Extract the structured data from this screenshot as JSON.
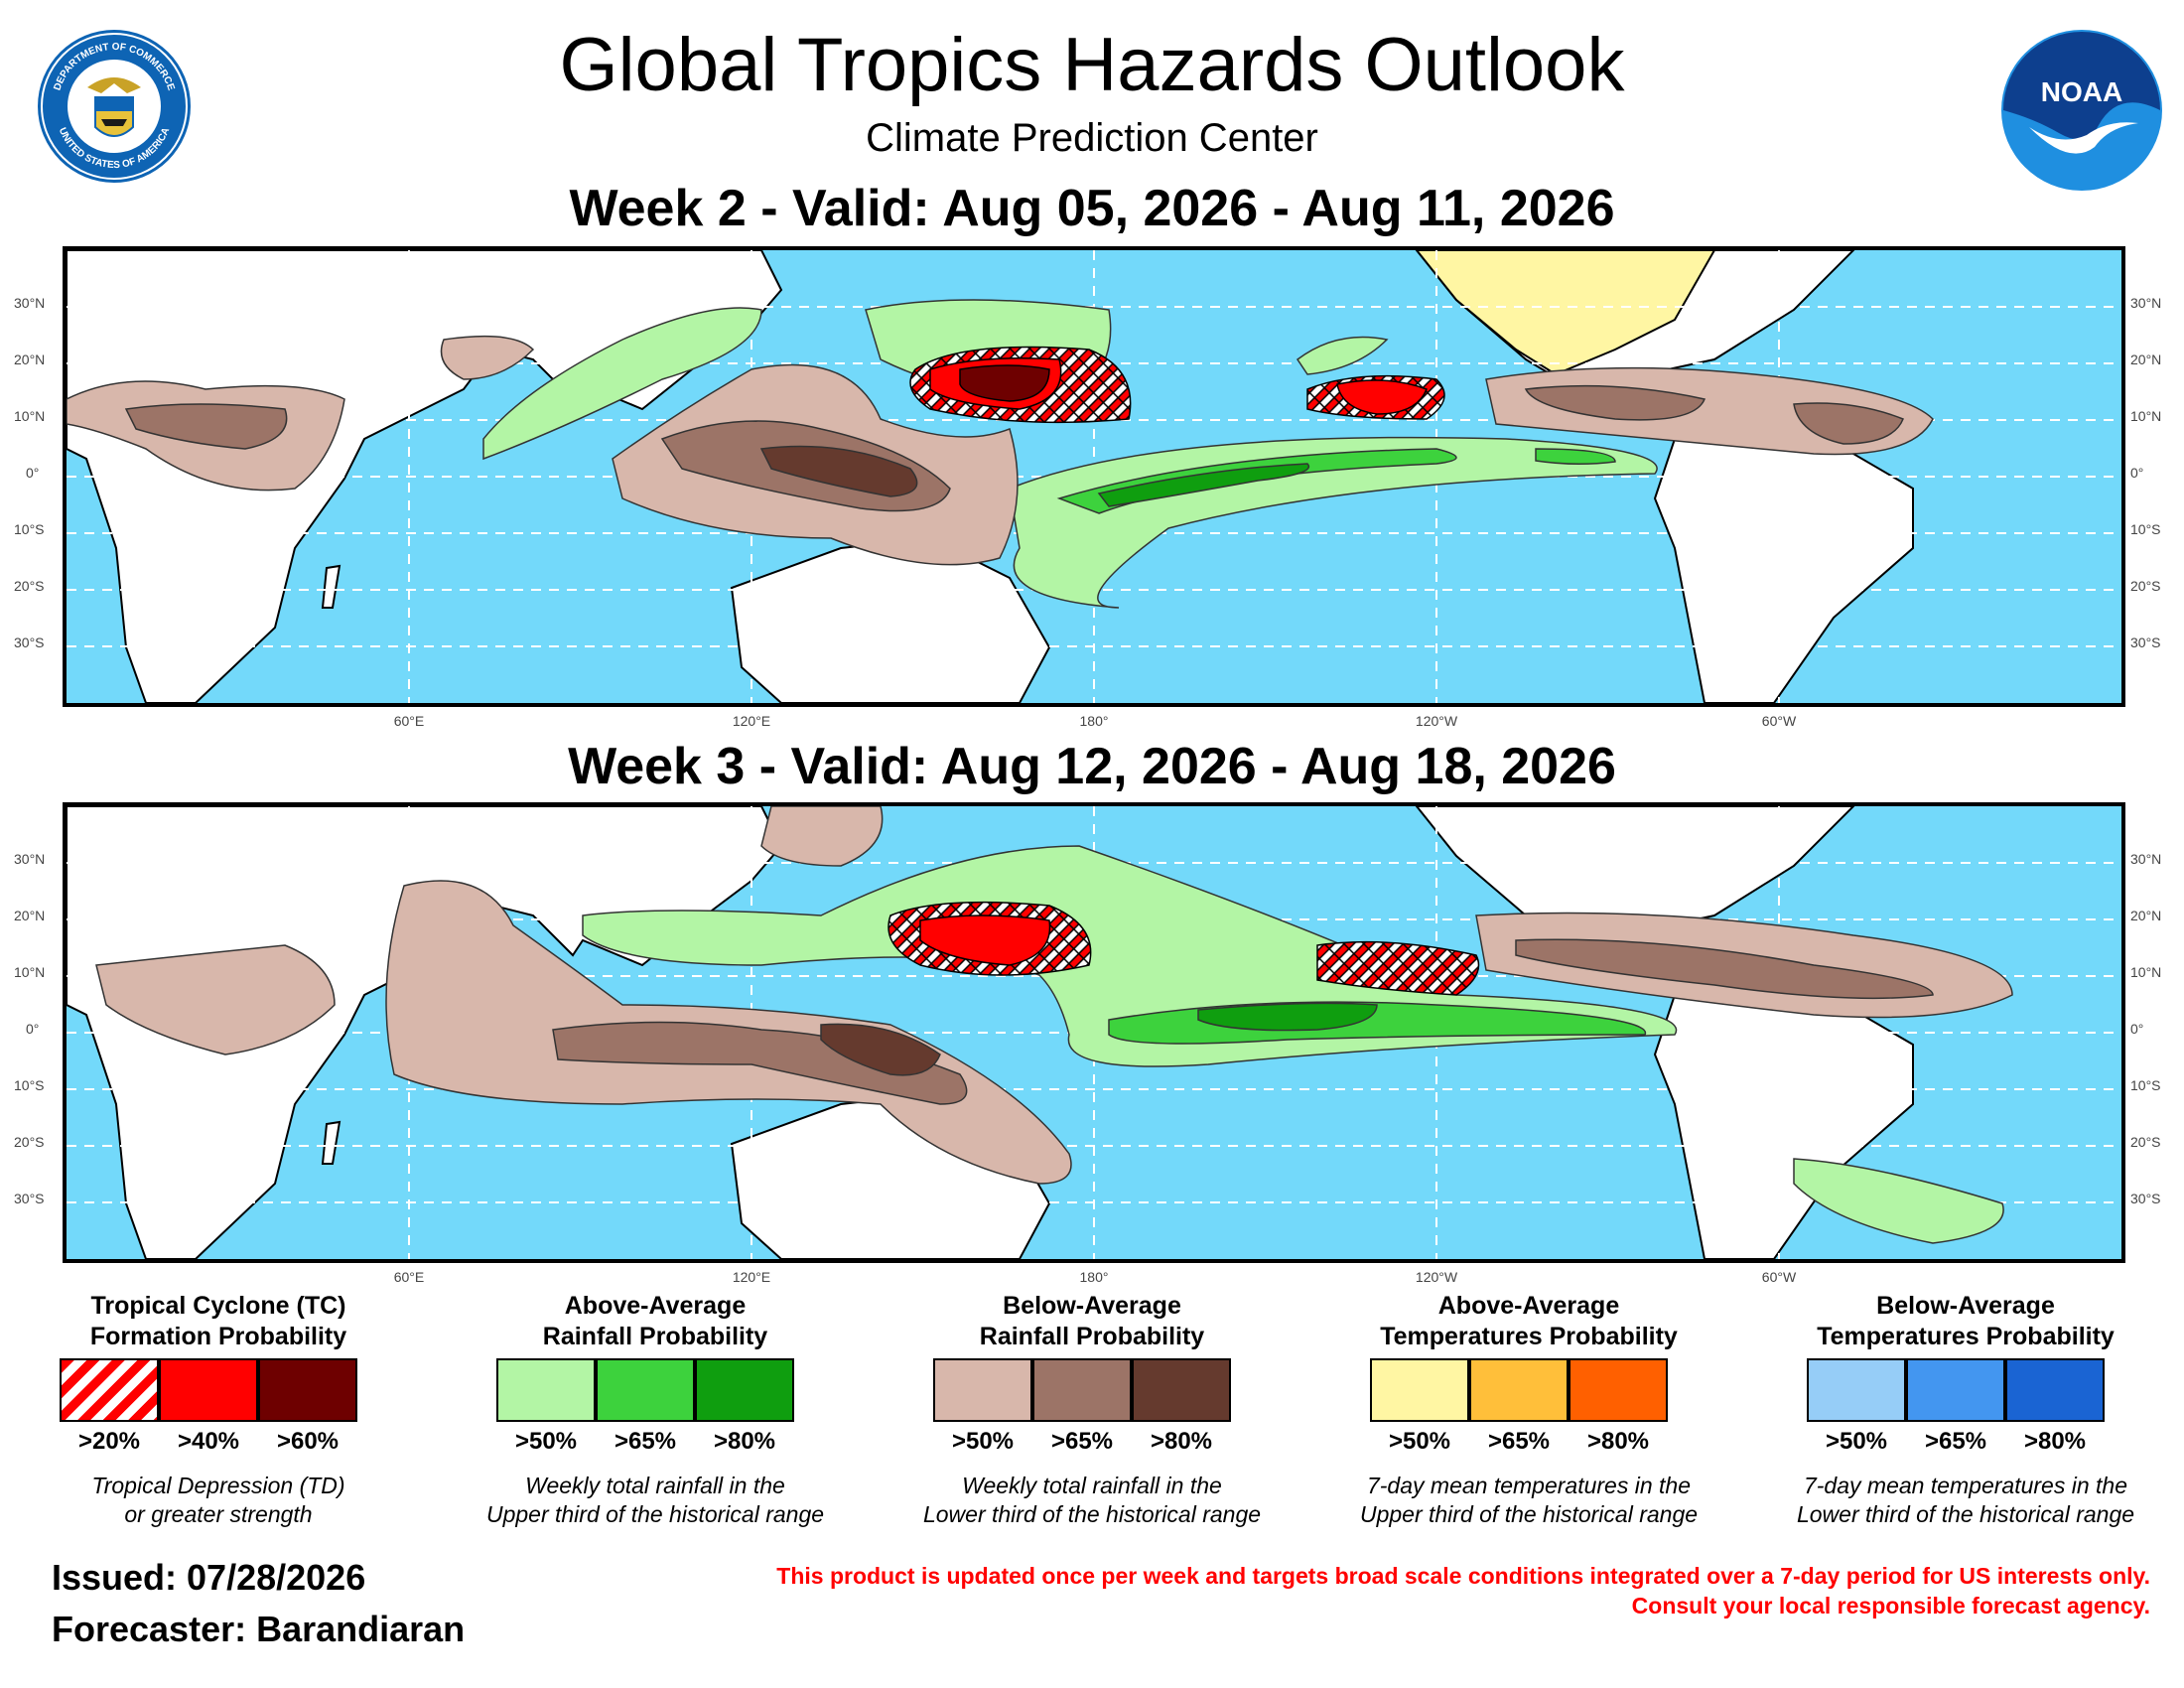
{
  "header": {
    "title": "Global Tropics Hazards Outlook",
    "subtitle": "Climate Prediction Center",
    "seal_text_top": "DEPARTMENT OF COMMERCE",
    "seal_text_bottom": "UNITED STATES OF AMERICA",
    "noaa_text": "NOAA"
  },
  "week2": {
    "title": "Week 2 - Valid: Aug 05, 2026 - Aug 11, 2026"
  },
  "week3": {
    "title": "Week 3 - Valid: Aug 12, 2026 - Aug 18, 2026"
  },
  "axes": {
    "lat_labels": [
      "30°N",
      "20°N",
      "10°N",
      "0°",
      "10°S",
      "20°S",
      "30°S"
    ],
    "lon_labels": [
      "60°E",
      "120°E",
      "180°",
      "120°W",
      "60°W"
    ]
  },
  "legend": [
    {
      "title": "Tropical Cyclone (TC)\nFormation Probability",
      "levels": [
        ">20%",
        ">40%",
        ">60%"
      ],
      "colors": [
        "hatch-red",
        "#ff0000",
        "#6e0000"
      ],
      "desc": "Tropical Depression (TD)\nor greater strength"
    },
    {
      "title": "Above-Average\nRainfall Probability",
      "levels": [
        ">50%",
        ">65%",
        ">80%"
      ],
      "colors": [
        "#b3f5a5",
        "#3dd23d",
        "#0f9e0f"
      ],
      "desc": "Weekly total rainfall in the\nUpper third of the historical range"
    },
    {
      "title": "Below-Average\nRainfall Probability",
      "levels": [
        ">50%",
        ">65%",
        ">80%"
      ],
      "colors": [
        "#d8b7ab",
        "#9c7467",
        "#653a2e"
      ],
      "desc": "Weekly total rainfall in the\nLower third of the historical range"
    },
    {
      "title": "Above-Average\nTemperatures Probability",
      "levels": [
        ">50%",
        ">65%",
        ">80%"
      ],
      "colors": [
        "#fff6a3",
        "#ffbf3a",
        "#ff6000"
      ],
      "desc": "7-day mean temperatures in the\nUpper third of the historical range"
    },
    {
      "title": "Below-Average\nTemperatures Probability",
      "levels": [
        ">50%",
        ">65%",
        ">80%"
      ],
      "colors": [
        "#96cdf7",
        "#4396f0",
        "#1a64d3"
      ],
      "desc": "7-day mean temperatures in the\nLower third of the historical range"
    }
  ],
  "footer": {
    "issued": "Issued: 07/28/2026",
    "forecaster": "Forecaster: Barandiaran",
    "disclaimer_line1": "This product is updated once per week and targets broad scale conditions integrated over a 7-day period for US interests only.",
    "disclaimer_line2": "Consult your local responsible forecast agency."
  },
  "colors": {
    "ocean": "#73d9fa",
    "land": "#ffffff",
    "disclaimer": "#ff0000"
  }
}
